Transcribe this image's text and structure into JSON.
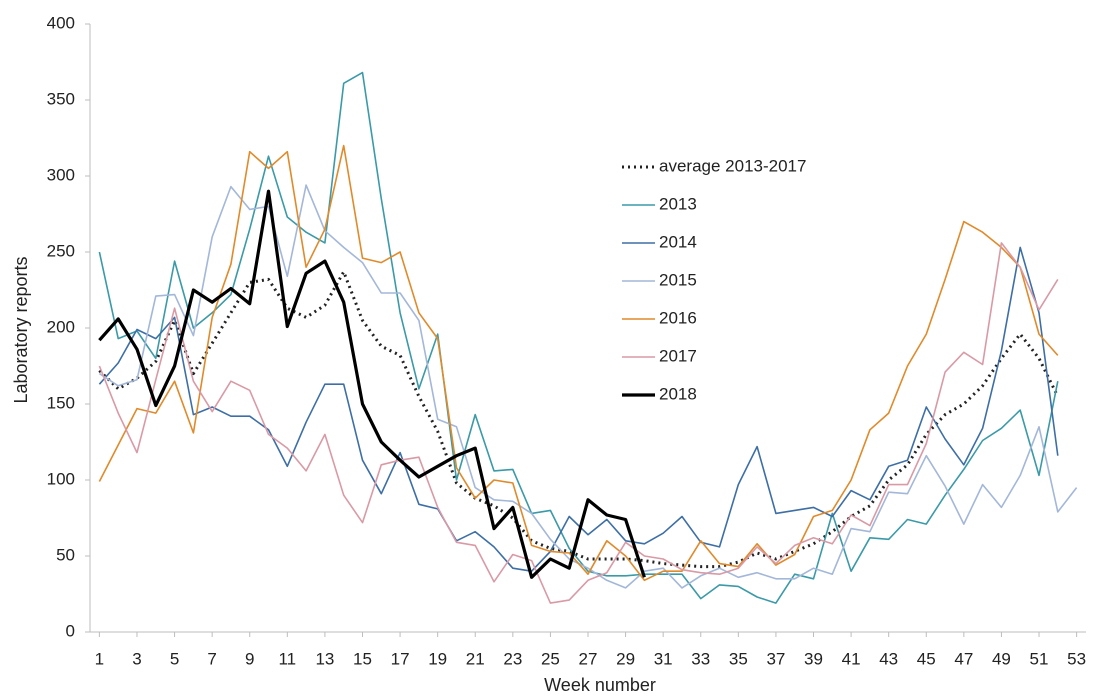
{
  "chart_data": {
    "type": "line",
    "x_label": "Week number",
    "y_label": "Laboratory reports",
    "x": [
      1,
      2,
      3,
      4,
      5,
      6,
      7,
      8,
      9,
      10,
      11,
      12,
      13,
      14,
      15,
      16,
      17,
      18,
      19,
      20,
      21,
      22,
      23,
      24,
      25,
      26,
      27,
      28,
      29,
      30,
      31,
      32,
      33,
      34,
      35,
      36,
      37,
      38,
      39,
      40,
      41,
      42,
      43,
      44,
      45,
      46,
      47,
      48,
      49,
      50,
      51,
      52,
      53
    ],
    "xlim": [
      0.5,
      53.5
    ],
    "xticks": [
      1,
      3,
      5,
      7,
      9,
      11,
      13,
      15,
      17,
      19,
      21,
      23,
      25,
      27,
      29,
      31,
      33,
      35,
      37,
      39,
      41,
      43,
      45,
      47,
      49,
      51,
      53
    ],
    "ylim": [
      0,
      400
    ],
    "yticks": [
      0,
      50,
      100,
      150,
      200,
      250,
      300,
      350,
      400
    ],
    "grid": false,
    "legend": "right",
    "series": [
      {
        "name": "average 2013-2017",
        "color": "#222222",
        "style": "dotted",
        "width": 3,
        "values": [
          172,
          160,
          167,
          178,
          205,
          170,
          190,
          210,
          230,
          232,
          213,
          207,
          215,
          237,
          205,
          188,
          182,
          155,
          132,
          98,
          88,
          83,
          75,
          60,
          55,
          53,
          48,
          48,
          48,
          47,
          45,
          44,
          43,
          43,
          46,
          52,
          48,
          53,
          58,
          66,
          76,
          83,
          100,
          110,
          130,
          143,
          150,
          162,
          180,
          196,
          180,
          155,
          null
        ]
      },
      {
        "name": "2013",
        "color": "#3a9aa8",
        "style": "solid",
        "width": 1.6,
        "values": [
          250,
          193,
          198,
          180,
          244,
          200,
          210,
          222,
          265,
          313,
          273,
          263,
          256,
          361,
          368,
          285,
          210,
          160,
          196,
          100,
          143,
          106,
          107,
          78,
          80,
          55,
          40,
          37,
          37,
          38,
          38,
          38,
          22,
          31,
          30,
          23,
          19,
          38,
          35,
          78,
          40,
          62,
          61,
          74,
          71,
          90,
          107,
          126,
          134,
          146,
          103,
          165,
          null
        ]
      },
      {
        "name": "2014",
        "color": "#3d6fa6",
        "style": "solid",
        "width": 1.6,
        "values": [
          163,
          177,
          199,
          193,
          207,
          143,
          148,
          142,
          142,
          133,
          109,
          138,
          163,
          163,
          113,
          91,
          118,
          84,
          81,
          60,
          66,
          56,
          42,
          40,
          53,
          76,
          64,
          74,
          60,
          58,
          65,
          76,
          59,
          56,
          97,
          122,
          78,
          80,
          82,
          76,
          93,
          87,
          109,
          113,
          148,
          127,
          110,
          134,
          185,
          253,
          210,
          116,
          null
        ]
      },
      {
        "name": "2015",
        "color": "#a3b7d9",
        "style": "solid",
        "width": 1.6,
        "values": [
          170,
          162,
          166,
          221,
          222,
          195,
          260,
          293,
          278,
          280,
          234,
          294,
          264,
          253,
          243,
          223,
          223,
          205,
          140,
          135,
          95,
          87,
          86,
          78,
          61,
          48,
          42,
          34,
          29,
          40,
          42,
          29,
          37,
          42,
          36,
          39,
          35,
          35,
          42,
          38,
          68,
          66,
          92,
          91,
          116,
          96,
          71,
          97,
          82,
          103,
          135,
          79,
          95
        ]
      },
      {
        "name": "2016",
        "color": "#e08a2a",
        "style": "solid",
        "width": 1.6,
        "values": [
          99,
          123,
          147,
          144,
          165,
          131,
          207,
          242,
          316,
          305,
          316,
          240,
          265,
          320,
          246,
          243,
          250,
          210,
          193,
          108,
          88,
          100,
          98,
          57,
          53,
          52,
          38,
          60,
          50,
          34,
          40,
          40,
          60,
          45,
          43,
          58,
          44,
          51,
          76,
          80,
          100,
          133,
          144,
          175,
          196,
          232,
          270,
          263,
          253,
          240,
          196,
          182,
          null
        ]
      },
      {
        "name": "2017",
        "color": "#d99aa6",
        "style": "solid",
        "width": 1.6,
        "values": [
          175,
          144,
          118,
          166,
          213,
          165,
          145,
          165,
          159,
          130,
          121,
          106,
          130,
          90,
          72,
          110,
          113,
          115,
          82,
          59,
          57,
          33,
          51,
          47,
          19,
          21,
          34,
          39,
          59,
          50,
          48,
          41,
          39,
          38,
          42,
          56,
          45,
          57,
          62,
          58,
          77,
          70,
          97,
          97,
          124,
          171,
          184,
          176,
          256,
          240,
          212,
          232,
          null
        ]
      },
      {
        "name": "2018",
        "color": "#000000",
        "style": "solid",
        "width": 3.2,
        "values": [
          192,
          206,
          186,
          149,
          175,
          225,
          217,
          226,
          216,
          290,
          201,
          236,
          244,
          217,
          150,
          125,
          113,
          102,
          109,
          116,
          121,
          68,
          82,
          36,
          48,
          42,
          87,
          77,
          74,
          36,
          null,
          null,
          null,
          null,
          null,
          null,
          null,
          null,
          null,
          null,
          null,
          null,
          null,
          null,
          null,
          null,
          null,
          null,
          null,
          null,
          null,
          null,
          null
        ]
      }
    ]
  }
}
